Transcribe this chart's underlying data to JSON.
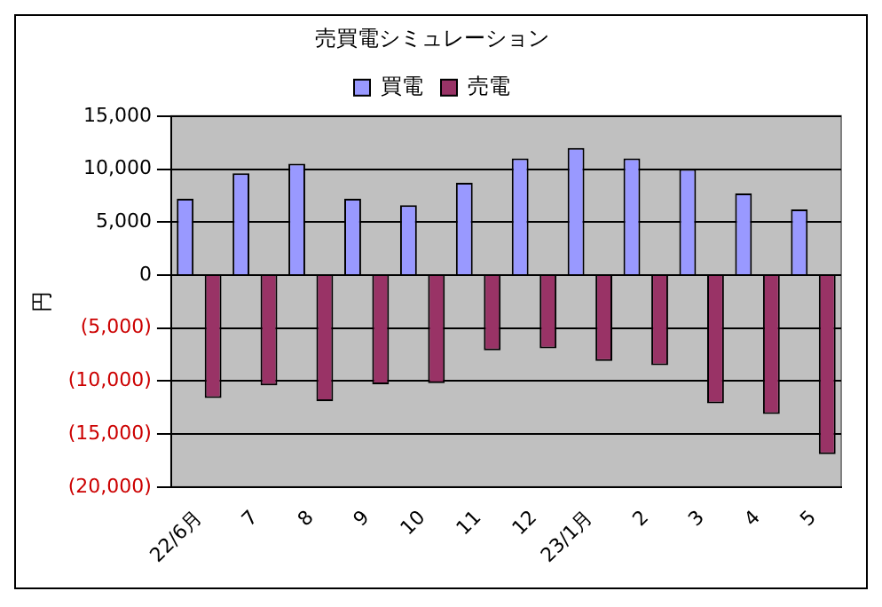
{
  "chart_data": {
    "type": "bar",
    "title": "売買電シミュレーション",
    "ylabel": "円",
    "categories": [
      "22/6月",
      "7",
      "8",
      "9",
      "10",
      "11",
      "12",
      "23/1月",
      "2",
      "3",
      "4",
      "5"
    ],
    "series": [
      {
        "name": "買電",
        "color": "#9999ff",
        "values": [
          7200,
          9600,
          10500,
          7200,
          6600,
          8700,
          11000,
          12000,
          11000,
          10000,
          7700,
          6200
        ]
      },
      {
        "name": "売電",
        "color": "#993366",
        "values": [
          -11600,
          -10400,
          -11900,
          -10300,
          -10200,
          -7100,
          -6900,
          -8100,
          -8500,
          -12100,
          -13100,
          -16900
        ]
      }
    ],
    "ylim": [
      -20000,
      15000
    ],
    "yticks": [
      {
        "value": -20000,
        "label": "(20,000)"
      },
      {
        "value": -15000,
        "label": "(15,000)"
      },
      {
        "value": -10000,
        "label": "(10,000)"
      },
      {
        "value": -5000,
        "label": "(5,000)"
      },
      0,
      {
        "value": 5000,
        "label": "5,000"
      },
      {
        "value": 10000,
        "label": "10,000"
      },
      {
        "value": 15000,
        "label": "15,000"
      }
    ],
    "grid": "y",
    "legend": "top"
  }
}
